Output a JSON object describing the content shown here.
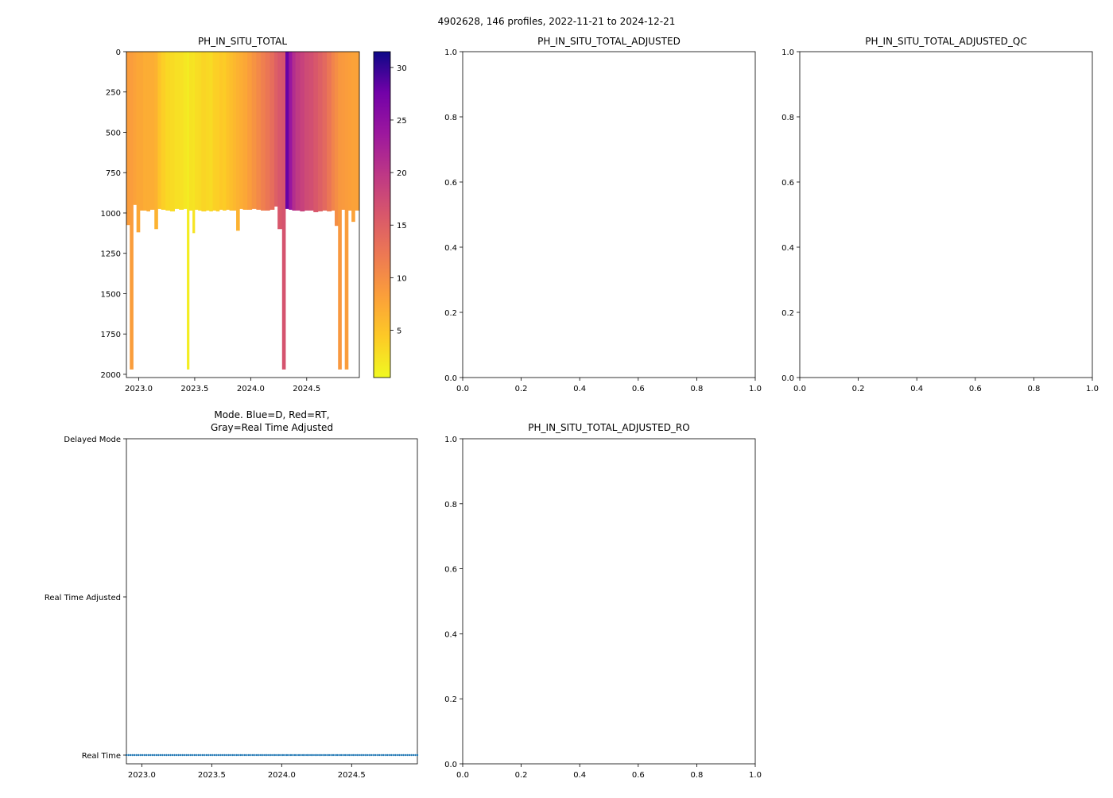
{
  "figure": {
    "suptitle": "4902628, 146 profiles, 2022-11-21 to 2024-12-21"
  },
  "chart_data": [
    {
      "id": "ph_in_situ_total",
      "type": "heatmap",
      "title": "PH_IN_SITU_TOTAL",
      "xlabel": "",
      "ylabel": "",
      "xlim": [
        2022.89,
        2024.97
      ],
      "ylim": [
        2020,
        0
      ],
      "xticks": [
        2023.0,
        2023.5,
        2024.0,
        2024.5
      ],
      "xtick_labels": [
        "2023.0",
        "2023.5",
        "2024.0",
        "2024.5"
      ],
      "yticks": [
        0,
        250,
        500,
        750,
        1000,
        1250,
        1500,
        1750,
        2000
      ],
      "ytick_labels": [
        "0",
        "250",
        "500",
        "750",
        "1000",
        "1250",
        "1500",
        "1750",
        "2000"
      ],
      "colormap": "plasma_r",
      "colorbar": {
        "vmin": 0.5,
        "vmax": 31.5,
        "ticks": [
          5,
          10,
          15,
          20,
          25,
          30
        ],
        "tick_labels": [
          "5",
          "10",
          "15",
          "20",
          "25",
          "30"
        ]
      },
      "columns": [
        {
          "x0": 2022.89,
          "x1": 2022.92,
          "value": 8.5,
          "depth": 1075
        },
        {
          "x0": 2022.92,
          "x1": 2022.95,
          "value": 8.5,
          "depth": 1970
        },
        {
          "x0": 2022.95,
          "x1": 2022.98,
          "value": 8.0,
          "depth": 950
        },
        {
          "x0": 2022.98,
          "x1": 2023.01,
          "value": 7.5,
          "depth": 1120
        },
        {
          "x0": 2023.01,
          "x1": 2023.04,
          "value": 7.5,
          "depth": 985
        },
        {
          "x0": 2023.04,
          "x1": 2023.07,
          "value": 7.0,
          "depth": 985
        },
        {
          "x0": 2023.07,
          "x1": 2023.1,
          "value": 7.0,
          "depth": 990
        },
        {
          "x0": 2023.1,
          "x1": 2023.14,
          "value": 7.0,
          "depth": 980
        },
        {
          "x0": 2023.14,
          "x1": 2023.17,
          "value": 6.5,
          "depth": 1100
        },
        {
          "x0": 2023.17,
          "x1": 2023.2,
          "value": 5.0,
          "depth": 975
        },
        {
          "x0": 2023.2,
          "x1": 2023.24,
          "value": 4.0,
          "depth": 980
        },
        {
          "x0": 2023.24,
          "x1": 2023.28,
          "value": 3.2,
          "depth": 985
        },
        {
          "x0": 2023.28,
          "x1": 2023.32,
          "value": 3.0,
          "depth": 990
        },
        {
          "x0": 2023.32,
          "x1": 2023.36,
          "value": 2.6,
          "depth": 975
        },
        {
          "x0": 2023.36,
          "x1": 2023.4,
          "value": 2.5,
          "depth": 980
        },
        {
          "x0": 2023.4,
          "x1": 2023.43,
          "value": 2.0,
          "depth": 975
        },
        {
          "x0": 2023.43,
          "x1": 2023.45,
          "value": 1.5,
          "depth": 1970
        },
        {
          "x0": 2023.45,
          "x1": 2023.48,
          "value": 2.4,
          "depth": 985
        },
        {
          "x0": 2023.48,
          "x1": 2023.5,
          "value": 2.2,
          "depth": 1125
        },
        {
          "x0": 2023.5,
          "x1": 2023.53,
          "value": 2.8,
          "depth": 980
        },
        {
          "x0": 2023.53,
          "x1": 2023.56,
          "value": 3.0,
          "depth": 985
        },
        {
          "x0": 2023.56,
          "x1": 2023.6,
          "value": 3.5,
          "depth": 990
        },
        {
          "x0": 2023.6,
          "x1": 2023.63,
          "value": 3.2,
          "depth": 985
        },
        {
          "x0": 2023.63,
          "x1": 2023.66,
          "value": 3.0,
          "depth": 990
        },
        {
          "x0": 2023.66,
          "x1": 2023.69,
          "value": 3.8,
          "depth": 985
        },
        {
          "x0": 2023.69,
          "x1": 2023.72,
          "value": 4.0,
          "depth": 990
        },
        {
          "x0": 2023.72,
          "x1": 2023.75,
          "value": 4.5,
          "depth": 980
        },
        {
          "x0": 2023.75,
          "x1": 2023.78,
          "value": 4.2,
          "depth": 985
        },
        {
          "x0": 2023.78,
          "x1": 2023.81,
          "value": 5.0,
          "depth": 980
        },
        {
          "x0": 2023.81,
          "x1": 2023.84,
          "value": 5.5,
          "depth": 985
        },
        {
          "x0": 2023.84,
          "x1": 2023.87,
          "value": 6.0,
          "depth": 985
        },
        {
          "x0": 2023.87,
          "x1": 2023.9,
          "value": 6.5,
          "depth": 1110
        },
        {
          "x0": 2023.9,
          "x1": 2023.93,
          "value": 7.0,
          "depth": 975
        },
        {
          "x0": 2023.93,
          "x1": 2023.97,
          "value": 7.5,
          "depth": 980
        },
        {
          "x0": 2023.97,
          "x1": 2024.01,
          "value": 8.5,
          "depth": 980
        },
        {
          "x0": 2024.01,
          "x1": 2024.05,
          "value": 9.5,
          "depth": 975
        },
        {
          "x0": 2024.05,
          "x1": 2024.09,
          "value": 10.5,
          "depth": 980
        },
        {
          "x0": 2024.09,
          "x1": 2024.13,
          "value": 11.5,
          "depth": 985
        },
        {
          "x0": 2024.13,
          "x1": 2024.17,
          "value": 12.5,
          "depth": 985
        },
        {
          "x0": 2024.17,
          "x1": 2024.21,
          "value": 13.5,
          "depth": 980
        },
        {
          "x0": 2024.21,
          "x1": 2024.24,
          "value": 15.0,
          "depth": 960
        },
        {
          "x0": 2024.24,
          "x1": 2024.28,
          "value": 16.0,
          "depth": 1100
        },
        {
          "x0": 2024.28,
          "x1": 2024.31,
          "value": 16.5,
          "depth": 1970
        },
        {
          "x0": 2024.31,
          "x1": 2024.34,
          "value": 28.0,
          "depth": 975
        },
        {
          "x0": 2024.34,
          "x1": 2024.37,
          "value": 24.0,
          "depth": 980
        },
        {
          "x0": 2024.37,
          "x1": 2024.4,
          "value": 21.0,
          "depth": 985
        },
        {
          "x0": 2024.4,
          "x1": 2024.44,
          "value": 19.5,
          "depth": 985
        },
        {
          "x0": 2024.44,
          "x1": 2024.48,
          "value": 18.5,
          "depth": 990
        },
        {
          "x0": 2024.48,
          "x1": 2024.52,
          "value": 17.5,
          "depth": 985
        },
        {
          "x0": 2024.52,
          "x1": 2024.56,
          "value": 17.0,
          "depth": 985
        },
        {
          "x0": 2024.56,
          "x1": 2024.6,
          "value": 16.0,
          "depth": 995
        },
        {
          "x0": 2024.6,
          "x1": 2024.64,
          "value": 15.0,
          "depth": 990
        },
        {
          "x0": 2024.64,
          "x1": 2024.68,
          "value": 14.0,
          "depth": 985
        },
        {
          "x0": 2024.68,
          "x1": 2024.72,
          "value": 12.5,
          "depth": 990
        },
        {
          "x0": 2024.72,
          "x1": 2024.75,
          "value": 11.0,
          "depth": 985
        },
        {
          "x0": 2024.75,
          "x1": 2024.78,
          "value": 10.0,
          "depth": 1080
        },
        {
          "x0": 2024.78,
          "x1": 2024.81,
          "value": 9.0,
          "depth": 1970
        },
        {
          "x0": 2024.81,
          "x1": 2024.84,
          "value": 8.8,
          "depth": 980
        },
        {
          "x0": 2024.84,
          "x1": 2024.87,
          "value": 8.5,
          "depth": 1970
        },
        {
          "x0": 2024.87,
          "x1": 2024.9,
          "value": 8.3,
          "depth": 985
        },
        {
          "x0": 2024.9,
          "x1": 2024.93,
          "value": 8.0,
          "depth": 1055
        },
        {
          "x0": 2024.93,
          "x1": 2024.97,
          "value": 8.0,
          "depth": 985
        }
      ]
    },
    {
      "id": "ph_adjusted",
      "type": "heatmap",
      "title": "PH_IN_SITU_TOTAL_ADJUSTED",
      "xlim": [
        0,
        1
      ],
      "ylim": [
        0,
        1
      ],
      "xticks": [
        0.0,
        0.2,
        0.4,
        0.6,
        0.8,
        1.0
      ],
      "xtick_labels": [
        "0.0",
        "0.2",
        "0.4",
        "0.6",
        "0.8",
        "1.0"
      ],
      "yticks": [
        0.0,
        0.2,
        0.4,
        0.6,
        0.8,
        1.0
      ],
      "ytick_labels": [
        "0.0",
        "0.2",
        "0.4",
        "0.6",
        "0.8",
        "1.0"
      ]
    },
    {
      "id": "ph_adjusted_qc",
      "type": "heatmap",
      "title": "PH_IN_SITU_TOTAL_ADJUSTED_QC",
      "xlim": [
        0,
        1
      ],
      "ylim": [
        0,
        1
      ],
      "xticks": [
        0.0,
        0.2,
        0.4,
        0.6,
        0.8,
        1.0
      ],
      "xtick_labels": [
        "0.0",
        "0.2",
        "0.4",
        "0.6",
        "0.8",
        "1.0"
      ],
      "yticks": [
        0.0,
        0.2,
        0.4,
        0.6,
        0.8,
        1.0
      ],
      "ytick_labels": [
        "0.0",
        "0.2",
        "0.4",
        "0.6",
        "0.8",
        "1.0"
      ]
    },
    {
      "id": "mode",
      "type": "scatter",
      "title_line1": "Mode. Blue=D, Red=RT,",
      "title_line2": "Gray=Real Time Adjusted",
      "xlim": [
        2022.89,
        2024.97
      ],
      "ylim": [
        0,
        2
      ],
      "xticks": [
        2023.0,
        2023.5,
        2024.0,
        2024.5
      ],
      "xtick_labels": [
        "2023.0",
        "2023.5",
        "2024.0",
        "2024.5"
      ],
      "yticks": [
        0,
        1,
        2
      ],
      "ytick_labels": [
        "Real Time",
        "Real Time Adjusted",
        "Delayed Mode"
      ],
      "series": [
        {
          "name": "Real Time",
          "color": "#1f77b4",
          "y": 0,
          "count": 146,
          "x_start": 2022.89,
          "x_end": 2024.97
        }
      ]
    },
    {
      "id": "ph_adjusted_ro",
      "type": "heatmap",
      "title": "PH_IN_SITU_TOTAL_ADJUSTED_RO",
      "xlim": [
        0,
        1
      ],
      "ylim": [
        0,
        1
      ],
      "xticks": [
        0.0,
        0.2,
        0.4,
        0.6,
        0.8,
        1.0
      ],
      "xtick_labels": [
        "0.0",
        "0.2",
        "0.4",
        "0.6",
        "0.8",
        "1.0"
      ],
      "yticks": [
        0.0,
        0.2,
        0.4,
        0.6,
        0.8,
        1.0
      ],
      "ytick_labels": [
        "0.0",
        "0.2",
        "0.4",
        "0.6",
        "0.8",
        "1.0"
      ]
    }
  ]
}
